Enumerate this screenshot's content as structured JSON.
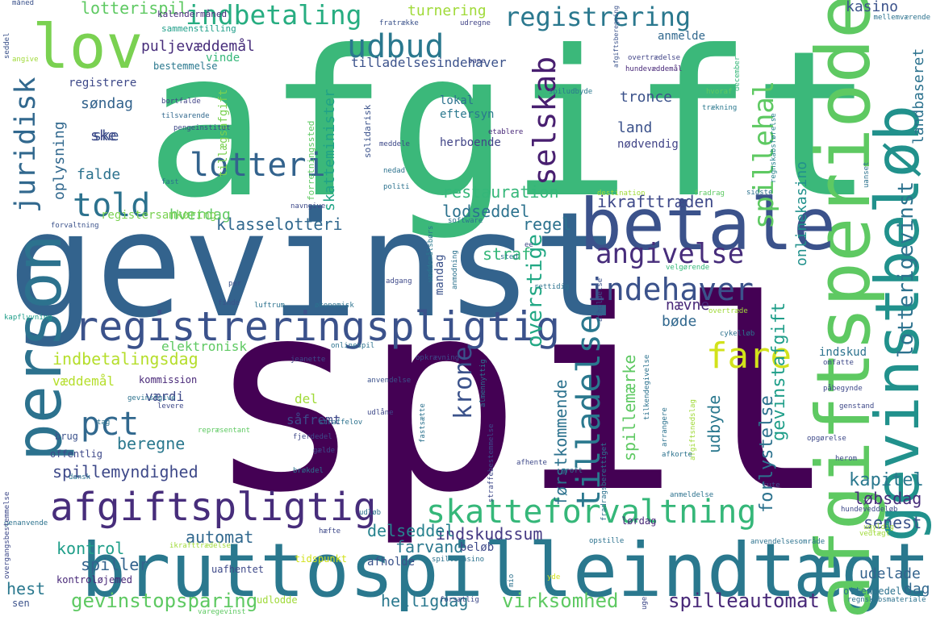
{
  "words": [
    {
      "text": "spil",
      "color": "#440154"
    },
    {
      "text": "afgift",
      "color": "#3bb87a"
    },
    {
      "text": "gevinst",
      "color": "#33638d"
    },
    {
      "text": "bruttospilleindtægt",
      "color": "#2a788e"
    },
    {
      "text": "afgiftsperiode",
      "color": "#5ec962"
    },
    {
      "text": "gevinstbeløb",
      "color": "#21918c"
    },
    {
      "text": "betale",
      "color": "#3b528b"
    },
    {
      "text": "person",
      "color": "#2c728e"
    },
    {
      "text": "lov",
      "color": "#7ad151"
    },
    {
      "text": "registreringspligtig",
      "color": "#3b528b"
    },
    {
      "text": "afgiftspligtig",
      "color": "#472d7b"
    },
    {
      "text": "skatteforvaltning",
      "color": "#35b779"
    },
    {
      "text": "told",
      "color": "#2c728e"
    },
    {
      "text": "lotteri",
      "color": "#33638d"
    },
    {
      "text": "udbud",
      "color": "#2a788e"
    },
    {
      "text": "selskab",
      "color": "#481f70"
    },
    {
      "text": "indehaver",
      "color": "#3b528b"
    },
    {
      "text": "angivelse",
      "color": "#472d7b"
    },
    {
      "text": "tilladelse",
      "color": "#2a788e"
    },
    {
      "text": "pct",
      "color": "#31688e"
    },
    {
      "text": "fare",
      "color": "#d2e21b"
    },
    {
      "text": "juridisk",
      "color": "#31688e"
    },
    {
      "text": "indbetaling",
      "color": "#27ad81"
    },
    {
      "text": "registrering",
      "color": "#2a788e"
    },
    {
      "text": "spillehal",
      "color": "#5ec962"
    },
    {
      "text": "krone",
      "color": "#3b528b"
    },
    {
      "text": "spilleautomat",
      "color": "#482878"
    },
    {
      "text": "gevinstopsparing",
      "color": "#5ec962"
    },
    {
      "text": "virksomhed",
      "color": "#5ec962"
    },
    {
      "text": "lotterigevinst",
      "color": "#2c728e"
    },
    {
      "text": "gevinstafgift",
      "color": "#1f9e89"
    },
    {
      "text": "forlystelse",
      "color": "#2c728e"
    },
    {
      "text": "kapitel",
      "color": "#2a788e"
    },
    {
      "text": "løbsdag",
      "color": "#472d7b"
    },
    {
      "text": "senest",
      "color": "#3b528b"
    },
    {
      "text": "ikrafttræden",
      "color": "#3e4989"
    },
    {
      "text": "restauration",
      "color": "#35b779"
    },
    {
      "text": "lodseddel",
      "color": "#2c728e"
    },
    {
      "text": "klasselotteri",
      "color": "#31688e"
    },
    {
      "text": "regel",
      "color": "#2c728e"
    },
    {
      "text": "overstige",
      "color": "#22a884"
    },
    {
      "text": "straf",
      "color": "#35b779"
    },
    {
      "text": "indbetalingsdag",
      "color": "#b5de2b"
    },
    {
      "text": "indskudssum",
      "color": "#443983"
    },
    {
      "text": "farvand",
      "color": "#2a788e"
    },
    {
      "text": "delseddel",
      "color": "#26828e"
    },
    {
      "text": "spillemyndighed",
      "color": "#3e4989"
    },
    {
      "text": "beregne",
      "color": "#2a788e"
    },
    {
      "text": "udbyde",
      "color": "#2a788e"
    },
    {
      "text": "førstkommende",
      "color": "#2c728e"
    },
    {
      "text": "spillemærke",
      "color": "#5ec962"
    },
    {
      "text": "automat",
      "color": "#31688e"
    },
    {
      "text": "kontrol",
      "color": "#1f9e89"
    },
    {
      "text": "spiller",
      "color": "#33638d"
    },
    {
      "text": "hest",
      "color": "#2a788e"
    },
    {
      "text": "helligdag",
      "color": "#2a788e"
    },
    {
      "text": "udelade",
      "color": "#33638d"
    },
    {
      "text": "dag",
      "color": "#31688e"
    },
    {
      "text": "hverdag",
      "color": "#5ec962"
    },
    {
      "text": "nævne",
      "color": "#482878"
    },
    {
      "text": "bøde",
      "color": "#31688e"
    },
    {
      "text": "onlinekasino",
      "color": "#21918c"
    },
    {
      "text": "landbaseret",
      "color": "#2c728e"
    },
    {
      "text": "skatteminister",
      "color": "#20a386"
    },
    {
      "text": "lotterispil",
      "color": "#5ec962"
    },
    {
      "text": "turnering",
      "color": "#a0da39"
    },
    {
      "text": "kasino",
      "color": "#3b528b"
    },
    {
      "text": "puljevæddemål",
      "color": "#472d7b"
    },
    {
      "text": "oplysning",
      "color": "#31688e"
    },
    {
      "text": "søndag",
      "color": "#33638d"
    },
    {
      "text": "ske",
      "color": "#3b528b"
    },
    {
      "text": "falde",
      "color": "#2c728e"
    },
    {
      "text": "tronce",
      "color": "#3b528b"
    },
    {
      "text": "land",
      "color": "#3b528b"
    },
    {
      "text": "lokal",
      "color": "#2c728e"
    },
    {
      "text": "eftersyn",
      "color": "#2a788e"
    },
    {
      "text": "herboende",
      "color": "#414487"
    },
    {
      "text": "nødvendig",
      "color": "#414487"
    },
    {
      "text": "registrere",
      "color": "#3e4989"
    },
    {
      "text": "tilladelsesindehaver",
      "color": "#3b528b"
    },
    {
      "text": "vinde",
      "color": "#35b779"
    },
    {
      "text": "anmelde",
      "color": "#31688e"
    },
    {
      "text": "væddemål",
      "color": "#b5de2b"
    },
    {
      "text": "værdi",
      "color": "#3e4989"
    },
    {
      "text": "del",
      "color": "#a0da39"
    },
    {
      "text": "såfremt",
      "color": "#3e4989"
    },
    {
      "text": "elektronisk",
      "color": "#5ec962"
    },
    {
      "text": "indskud",
      "color": "#2c728e"
    },
    {
      "text": "mandag",
      "color": "#3b528b"
    },
    {
      "text": "registersamkøring",
      "color": "#7ad151"
    },
    {
      "text": "tillægsafgift",
      "color": "#7ad151"
    },
    {
      "text": "afholde",
      "color": "#3b528b"
    },
    {
      "text": "beløb",
      "color": "#3e4989"
    },
    {
      "text": "lørdag",
      "color": "#482878"
    },
    {
      "text": "ottendedel",
      "color": "#2c728e"
    },
    {
      "text": "kontroløjemed",
      "color": "#482878"
    },
    {
      "text": "udlodde",
      "color": "#a0da39"
    },
    {
      "text": "tidspunkt",
      "color": "#d2e21b"
    },
    {
      "text": "uafhentet",
      "color": "#3e4989"
    },
    {
      "text": "sen",
      "color": "#3b528b"
    },
    {
      "text": "offentlig",
      "color": "#3e4989"
    },
    {
      "text": "brug",
      "color": "#3b528b"
    },
    {
      "text": "kommission",
      "color": "#482878"
    },
    {
      "text": "bestemmelse",
      "color": "#2a788e"
    },
    {
      "text": "sammenstilling",
      "color": "#1f9e89"
    },
    {
      "text": "kalendermåned",
      "color": "#472d7b"
    },
    {
      "text": "fratrække",
      "color": "#3b528b"
    },
    {
      "text": "udregne",
      "color": "#414487"
    },
    {
      "text": "bane",
      "color": "#3e4989"
    },
    {
      "text": "mellemværende",
      "color": "#2c728e"
    },
    {
      "text": "måned",
      "color": "#3b528b"
    },
    {
      "text": "seddel",
      "color": "#3b528b"
    },
    {
      "text": "angive",
      "color": "#a0da39"
    },
    {
      "text": "overtrædelse",
      "color": "#414487"
    },
    {
      "text": "hundevæddemål",
      "color": "#482878"
    },
    {
      "text": "bortfalde",
      "color": "#414487"
    },
    {
      "text": "tilsvarende",
      "color": "#31688e"
    },
    {
      "text": "forretningssted",
      "color": "#5ec962"
    },
    {
      "text": "solidarisk",
      "color": "#3b528b"
    },
    {
      "text": "spiludbyde",
      "color": "#2a788e"
    },
    {
      "text": "hvoraf",
      "color": "#5ec962"
    },
    {
      "text": "regnskabsførelse",
      "color": "#26828e"
    },
    {
      "text": "trækning",
      "color": "#2a788e"
    },
    {
      "text": "december",
      "color": "#35b779"
    },
    {
      "text": "afgiftsberegning",
      "color": "#3b528b"
    },
    {
      "text": "pengeinstitut",
      "color": "#3e4989"
    },
    {
      "text": "etablere",
      "color": "#482878"
    },
    {
      "text": "meddele",
      "color": "#3e4989"
    },
    {
      "text": "fast",
      "color": "#2c728e"
    },
    {
      "text": "nedad",
      "color": "#2c728e"
    },
    {
      "text": "politi",
      "color": "#2c728e"
    },
    {
      "text": "destination",
      "color": "#a0da39"
    },
    {
      "text": "fradrag",
      "color": "#5ec962"
    },
    {
      "text": "sidste",
      "color": "#2c728e"
    },
    {
      "text": "navngive",
      "color": "#3e4989"
    },
    {
      "text": "software",
      "color": "#2c728e"
    },
    {
      "text": "forvaltning",
      "color": "#3b528b"
    },
    {
      "text": "væddemålsbørs",
      "color": "#2a788e"
    },
    {
      "text": "anmodning",
      "color": "#2c728e"
    },
    {
      "text": "velgørende",
      "color": "#35b779"
    },
    {
      "text": "rettidig",
      "color": "#2c728e"
    },
    {
      "text": "adgang",
      "color": "#3e4989"
    },
    {
      "text": "afholdelse",
      "color": "#3b528b"
    },
    {
      "text": "per",
      "color": "#3b528b"
    },
    {
      "text": "finde",
      "color": "#3b528b"
    },
    {
      "text": "luftrum",
      "color": "#2c728e"
    },
    {
      "text": "økonomisk",
      "color": "#2c728e"
    },
    {
      "text": "kapflyvning",
      "color": "#1f9e89"
    },
    {
      "text": "onlinespil",
      "color": "#2c728e"
    },
    {
      "text": "jeanette",
      "color": "#3e4989"
    },
    {
      "text": "opkrævning",
      "color": "#3e4989"
    },
    {
      "text": "tilkendegivelse",
      "color": "#2c728e"
    },
    {
      "text": "cykelløb",
      "color": "#2c728e"
    },
    {
      "text": "overtræde",
      "color": "#a0da39"
    },
    {
      "text": "omfatte",
      "color": "#3e4989"
    },
    {
      "text": "påbegynde",
      "color": "#3e4989"
    },
    {
      "text": "gevinstgive",
      "color": "#2c728e"
    },
    {
      "text": "anvendelse",
      "color": "#3b528b"
    },
    {
      "text": "almennyttig",
      "color": "#2c728e"
    },
    {
      "text": "afgiftsnedslag",
      "color": "#a0da39"
    },
    {
      "text": "arrangere",
      "color": "#2c728e"
    },
    {
      "text": "genstand",
      "color": "#3e4989"
    },
    {
      "text": "udlåne",
      "color": "#3e4989"
    },
    {
      "text": "fastsætte",
      "color": "#2c728e"
    },
    {
      "text": "repræsentant",
      "color": "#5ec962"
    },
    {
      "text": "straffelov",
      "color": "#2c728e"
    },
    {
      "text": "fjerdedel",
      "color": "#3e4989"
    },
    {
      "text": "afhente",
      "color": "#3e4989"
    },
    {
      "text": "afkorte",
      "color": "#2c728e"
    },
    {
      "text": "opgørelse",
      "color": "#3e4989"
    },
    {
      "text": "brøkdel",
      "color": "#2c728e"
    },
    {
      "text": "groft",
      "color": "#2c728e"
    },
    {
      "text": "herom",
      "color": "#3e4989"
    },
    {
      "text": "rute",
      "color": "#3e4989"
    },
    {
      "text": "anmeldelse",
      "color": "#2c728e"
    },
    {
      "text": "hundeveddeløb",
      "color": "#3e4989"
    },
    {
      "text": "genanvende",
      "color": "#2c728e"
    },
    {
      "text": "udløb",
      "color": "#2c728e"
    },
    {
      "text": "hæfte",
      "color": "#3e4989"
    },
    {
      "text": "opstille",
      "color": "#2c728e"
    },
    {
      "text": "anvendelsesområde",
      "color": "#2c728e"
    },
    {
      "text": "spillekasino",
      "color": "#2c728e"
    },
    {
      "text": "forsætlig",
      "color": "#3e4989"
    },
    {
      "text": "regnskabsmateriale",
      "color": "#2c728e"
    },
    {
      "text": "overgangsbestemmelse",
      "color": "#3e4989"
    },
    {
      "text": "dansk",
      "color": "#2c728e"
    },
    {
      "text": "ugyldig",
      "color": "#a0da39"
    },
    {
      "text": "levere",
      "color": "#3e4989"
    },
    {
      "text": "tag",
      "color": "#2c728e"
    },
    {
      "text": "gælde",
      "color": "#3e4989"
    },
    {
      "text": "varegevinst",
      "color": "#5ec962"
    },
    {
      "text": "ikrafttrædelse",
      "color": "#a0da39"
    },
    {
      "text": "uge",
      "color": "#3e4989"
    },
    {
      "text": "yde",
      "color": "#d2e21b"
    },
    {
      "text": "mio",
      "color": "#2c728e"
    },
    {
      "text": "fradragsberettiget",
      "color": "#2c728e"
    },
    {
      "text": "straffebestemmelse",
      "color": "#3e4989"
    },
    {
      "text": "vedtægt",
      "color": "#a0da39"
    },
    {
      "text": "ske",
      "color": "#3e4989"
    },
    {
      "text": "uanset",
      "color": "#2c728e"
    },
    {
      "text": "sted",
      "color": "#2c728e"
    },
    {
      "text": "ee",
      "color": "#3e4989"
    }
  ]
}
